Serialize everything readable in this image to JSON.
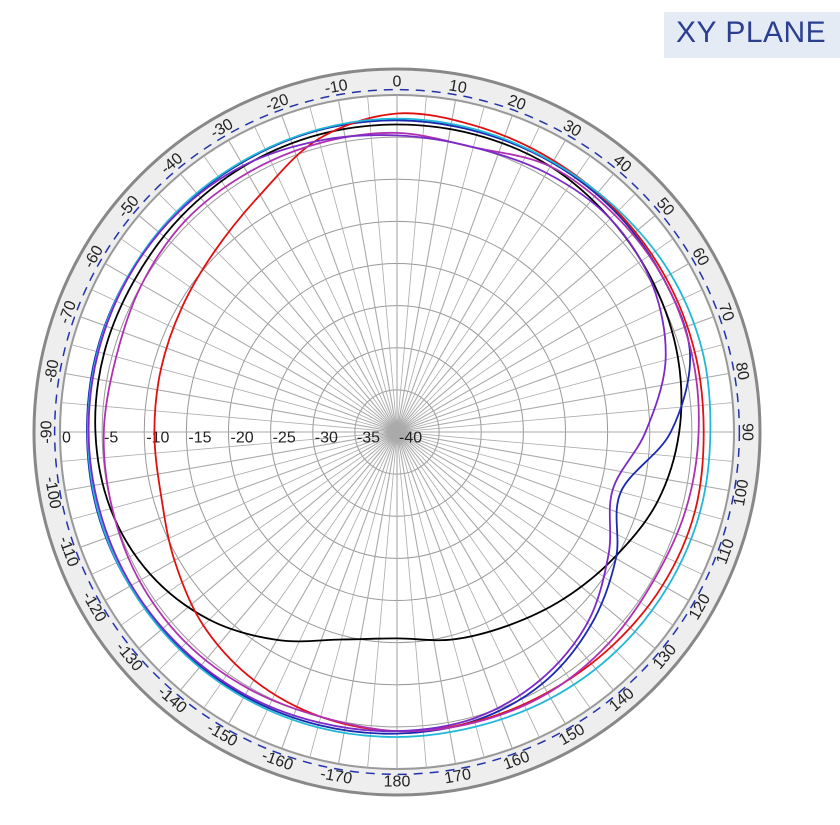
{
  "chart_data": {
    "type": "polar-line",
    "title": "XY PLANE",
    "angle_ticks": [
      0,
      10,
      20,
      30,
      40,
      50,
      60,
      70,
      80,
      90,
      100,
      110,
      120,
      130,
      140,
      150,
      160,
      170,
      180,
      -170,
      -160,
      -150,
      -140,
      -130,
      -120,
      -110,
      -100,
      -90,
      -80,
      -70,
      -60,
      -50,
      -40,
      -30,
      -20,
      -10
    ],
    "angle_labels": [
      "0",
      "10",
      "20",
      "30",
      "40",
      "50",
      "60",
      "70",
      "80",
      "90",
      "100",
      "110",
      "120",
      "130",
      "140",
      "150",
      "160",
      "170",
      "180",
      "-170",
      "-160",
      "-150",
      "-140",
      "-130",
      "-120",
      "-110",
      "-100",
      "-90",
      "-80",
      "-70",
      "-60",
      "-50",
      "-40",
      "-30",
      "-20",
      "-10"
    ],
    "radial_ticks": [
      0,
      -5,
      -10,
      -15,
      -20,
      -25,
      -30,
      -35,
      -40
    ],
    "radial_labels": [
      "0",
      "-5",
      "-10",
      "-15",
      "-20",
      "-25",
      "-30",
      "-35",
      "-40"
    ],
    "r_range": [
      -40,
      0
    ],
    "reference_circle": -1.5,
    "grid": true,
    "angle_samples": [
      0,
      15,
      30,
      45,
      60,
      75,
      90,
      105,
      120,
      135,
      150,
      165,
      180,
      195,
      210,
      225,
      240,
      255,
      270,
      285,
      300,
      315,
      330,
      345
    ],
    "series": [
      {
        "color": "#000000",
        "values": [
          -3.5,
          -3.5,
          -3.6,
          -4.2,
          -4.8,
          -5.5,
          -6.5,
          -8,
          -10.2,
          -12,
          -13.5,
          -14.5,
          -15.5,
          -14.5,
          -11.5,
          -8.5,
          -6.2,
          -4.8,
          -4.2,
          -4,
          -4,
          -3.8,
          -3.6,
          -3.5
        ]
      },
      {
        "color": "#1a2ab0",
        "values": [
          -3,
          -3.1,
          -3.1,
          -3.2,
          -3.5,
          -4,
          -7.5,
          -12.5,
          -10,
          -7.5,
          -5.5,
          -4.5,
          -4.2,
          -4,
          -3.8,
          -3.6,
          -3.4,
          -3.2,
          -3.2,
          -3.1,
          -3.1,
          -3.1,
          -3.1,
          -3
        ]
      },
      {
        "color": "#e01010",
        "values": [
          -2.2,
          -2.5,
          -2.8,
          -3,
          -3.2,
          -3.4,
          -3.6,
          -3.4,
          -3.6,
          -4,
          -4.3,
          -4.4,
          -4.5,
          -5,
          -6,
          -7.5,
          -9.5,
          -11,
          -11.2,
          -11,
          -10.5,
          -9.5,
          -7.5,
          -4
        ]
      },
      {
        "color": "#b030b0",
        "values": [
          -4.5,
          -5,
          -3.6,
          -3.5,
          -3.5,
          -3.8,
          -4.2,
          -4.5,
          -4.8,
          -4.5,
          -4.2,
          -4.3,
          -4.5,
          -5,
          -4.8,
          -4.6,
          -4.7,
          -5,
          -5.2,
          -5.5,
          -5,
          -4.5,
          -4.5,
          -4.5
        ]
      },
      {
        "color": "#22b8d8",
        "values": [
          -2.8,
          -2.9,
          -3,
          -2.8,
          -2.5,
          -2.5,
          -2.8,
          -2.8,
          -3,
          -3.2,
          -3.5,
          -3.8,
          -3.8,
          -3.7,
          -3.6,
          -3.5,
          -3.4,
          -3.3,
          -3.3,
          -3.2,
          -3.1,
          -3,
          -3,
          -2.9
        ]
      },
      {
        "color": "#7a2ac8",
        "values": [
          -4.8,
          -5,
          -4.5,
          -4.2,
          -5,
          -7,
          -10.5,
          -13.5,
          -11,
          -8,
          -6,
          -4.8,
          -4.5,
          -4.3,
          -4,
          -3.8,
          -3.6,
          -3.5,
          -3.4,
          -3.3,
          -3.2,
          -3.2,
          -3.5,
          -4.2
        ]
      }
    ]
  }
}
